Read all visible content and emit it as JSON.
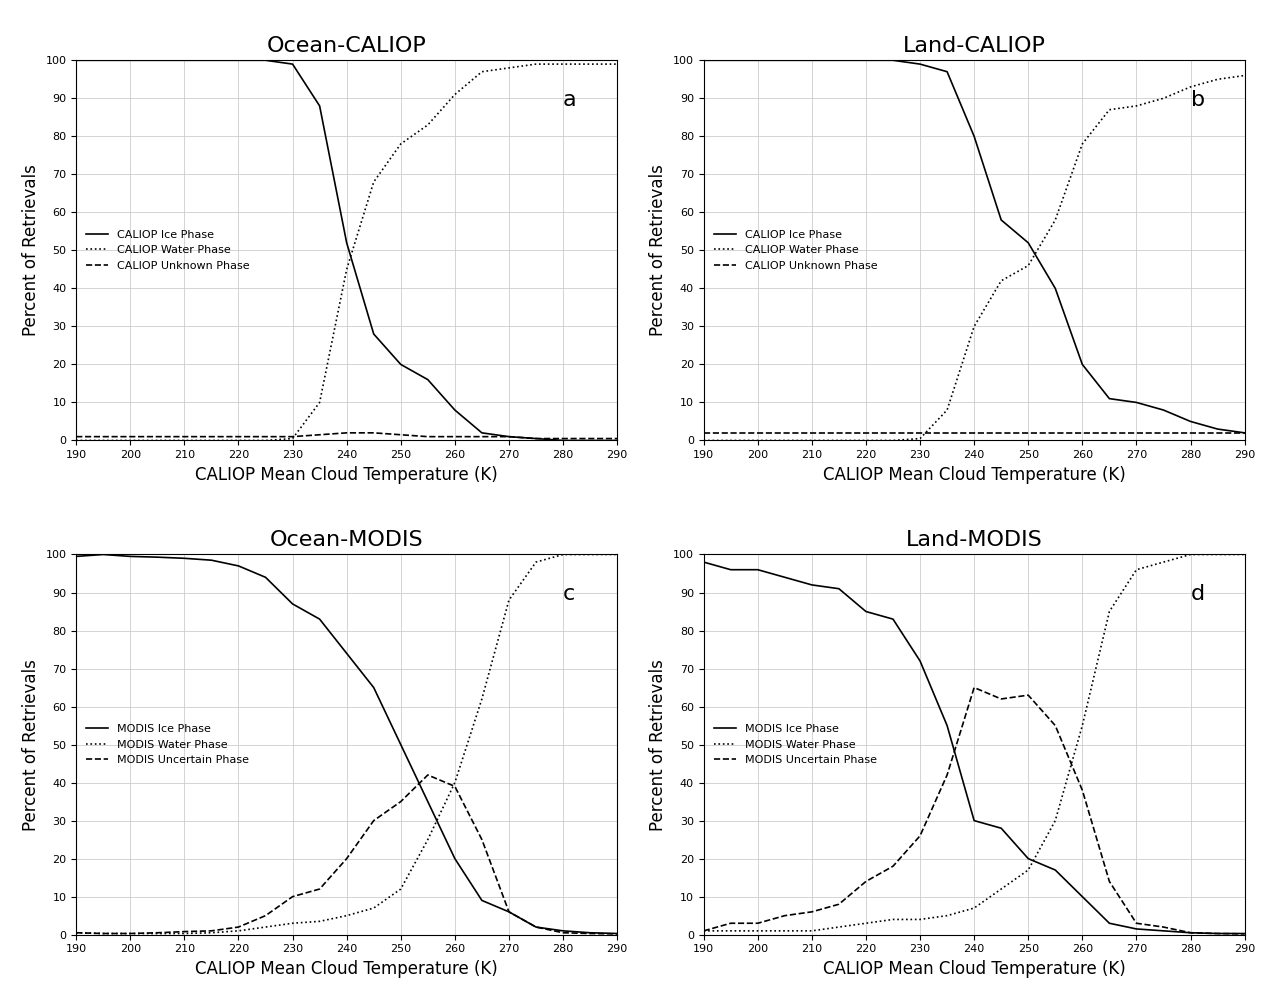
{
  "chart_data": [
    {
      "type": "line",
      "title": "Ocean-CALIOP",
      "annotation": "a",
      "x_label": "CALIOP Mean Cloud Temperature (K)",
      "y_label": "Percent of Retrievals",
      "x": [
        190,
        195,
        200,
        205,
        210,
        215,
        220,
        225,
        230,
        235,
        240,
        245,
        250,
        255,
        260,
        265,
        270,
        275,
        280,
        285,
        290
      ],
      "xlim": [
        190,
        290
      ],
      "ylim": [
        0,
        100
      ],
      "xticks": [
        190,
        200,
        210,
        220,
        230,
        240,
        250,
        260,
        270,
        280,
        290
      ],
      "yticks": [
        0,
        10,
        20,
        30,
        40,
        50,
        60,
        70,
        80,
        90,
        100
      ],
      "grid": true,
      "legend": "center left",
      "series": [
        {
          "name": "CALIOP Ice Phase",
          "color": "#000000",
          "line_style": "solid",
          "values": [
            100,
            100,
            100,
            100,
            100,
            100,
            100,
            100,
            99,
            88,
            52,
            28,
            20,
            16,
            8,
            2,
            1,
            0.5,
            0,
            0,
            0
          ]
        },
        {
          "name": "CALIOP Water Phase",
          "color": "#000000",
          "line_style": "dotted",
          "values": [
            0,
            0,
            0,
            0,
            0,
            0,
            0,
            0,
            0.5,
            10,
            45,
            68,
            78,
            83,
            91,
            97,
            98,
            99,
            99,
            99,
            99
          ]
        },
        {
          "name": "CALIOP Unknown Phase",
          "color": "#000000",
          "line_style": "dashed",
          "values": [
            1,
            1,
            1,
            1,
            1,
            1,
            1,
            1,
            1,
            1.5,
            2,
            2,
            1.5,
            1,
            1,
            1,
            1,
            0.5,
            0.5,
            0.5,
            0.5
          ]
        }
      ]
    },
    {
      "type": "line",
      "title": "Land-CALIOP",
      "annotation": "b",
      "x_label": "CALIOP Mean Cloud Temperature (K)",
      "y_label": "Percent of Retrievals",
      "x": [
        190,
        195,
        200,
        205,
        210,
        215,
        220,
        225,
        230,
        235,
        240,
        245,
        250,
        255,
        260,
        265,
        270,
        275,
        280,
        285,
        290
      ],
      "xlim": [
        190,
        290
      ],
      "ylim": [
        0,
        100
      ],
      "xticks": [
        190,
        200,
        210,
        220,
        230,
        240,
        250,
        260,
        270,
        280,
        290
      ],
      "yticks": [
        0,
        10,
        20,
        30,
        40,
        50,
        60,
        70,
        80,
        90,
        100
      ],
      "grid": true,
      "legend": "center left",
      "series": [
        {
          "name": "CALIOP Ice Phase",
          "color": "#000000",
          "line_style": "solid",
          "values": [
            100,
            100,
            100,
            100,
            100,
            100,
            100,
            100,
            99,
            97,
            80,
            58,
            52,
            40,
            20,
            11,
            10,
            8,
            5,
            3,
            2
          ]
        },
        {
          "name": "CALIOP Water Phase",
          "color": "#000000",
          "line_style": "dotted",
          "values": [
            0,
            0,
            0,
            0,
            0,
            0,
            0,
            0,
            0.5,
            8,
            30,
            42,
            46,
            58,
            78,
            87,
            88,
            90,
            93,
            95,
            96
          ]
        },
        {
          "name": "CALIOP Unknown Phase",
          "color": "#000000",
          "line_style": "dashed",
          "values": [
            2,
            2,
            2,
            2,
            2,
            2,
            2,
            2,
            2,
            2,
            2,
            2,
            2,
            2,
            2,
            2,
            2,
            2,
            2,
            2,
            2
          ]
        }
      ]
    },
    {
      "type": "line",
      "title": "Ocean-MODIS",
      "annotation": "c",
      "x_label": "CALIOP Mean Cloud Temperature (K)",
      "y_label": "Percent of Retrievals",
      "x": [
        190,
        195,
        200,
        205,
        210,
        215,
        220,
        225,
        230,
        235,
        240,
        245,
        250,
        255,
        260,
        265,
        270,
        275,
        280,
        285,
        290
      ],
      "xlim": [
        190,
        290
      ],
      "ylim": [
        0,
        100
      ],
      "xticks": [
        190,
        200,
        210,
        220,
        230,
        240,
        250,
        260,
        270,
        280,
        290
      ],
      "yticks": [
        0,
        10,
        20,
        30,
        40,
        50,
        60,
        70,
        80,
        90,
        100
      ],
      "grid": true,
      "legend": "center left",
      "series": [
        {
          "name": "MODIS Ice Phase",
          "color": "#000000",
          "line_style": "solid",
          "values": [
            99.5,
            100,
            99.5,
            99.3,
            99,
            98.5,
            97,
            94,
            87,
            83,
            74,
            65,
            50,
            35,
            20,
            9,
            6,
            2,
            1,
            0.5,
            0.3
          ]
        },
        {
          "name": "MODIS Water Phase",
          "color": "#000000",
          "line_style": "dotted",
          "values": [
            0.5,
            0.3,
            0.3,
            0.3,
            0.3,
            0.5,
            1,
            2,
            3,
            3.5,
            5,
            7,
            12,
            25,
            40,
            62,
            88,
            98,
            100,
            100,
            100
          ]
        },
        {
          "name": "MODIS Uncertain Phase",
          "color": "#000000",
          "line_style": "dashed",
          "values": [
            0.5,
            0.3,
            0.3,
            0.5,
            0.8,
            1,
            2,
            5,
            10,
            12,
            20,
            30,
            35,
            42,
            39,
            25,
            6,
            2,
            0.5,
            0.3,
            0.2
          ]
        }
      ]
    },
    {
      "type": "line",
      "title": "Land-MODIS",
      "annotation": "d",
      "x_label": "CALIOP Mean Cloud Temperature (K)",
      "y_label": "Percent of Retrievals",
      "x": [
        190,
        195,
        200,
        205,
        210,
        215,
        220,
        225,
        230,
        235,
        240,
        245,
        250,
        255,
        260,
        265,
        270,
        275,
        280,
        285,
        290
      ],
      "xlim": [
        190,
        290
      ],
      "ylim": [
        0,
        100
      ],
      "xticks": [
        190,
        200,
        210,
        220,
        230,
        240,
        250,
        260,
        270,
        280,
        290
      ],
      "yticks": [
        0,
        10,
        20,
        30,
        40,
        50,
        60,
        70,
        80,
        90,
        100
      ],
      "grid": true,
      "legend": "center left",
      "series": [
        {
          "name": "MODIS Ice Phase",
          "color": "#000000",
          "line_style": "solid",
          "values": [
            98,
            96,
            96,
            94,
            92,
            91,
            85,
            83,
            72,
            55,
            30,
            28,
            20,
            17,
            10,
            3,
            1.5,
            1,
            0.5,
            0.3,
            0.3
          ]
        },
        {
          "name": "MODIS Water Phase",
          "color": "#000000",
          "line_style": "dotted",
          "values": [
            1,
            1,
            1,
            1,
            1,
            2,
            3,
            4,
            4,
            5,
            7,
            12,
            17,
            30,
            55,
            85,
            96,
            98,
            100,
            100,
            100
          ]
        },
        {
          "name": "MODIS Uncertain Phase",
          "color": "#000000",
          "line_style": "dashed",
          "values": [
            1,
            3,
            3,
            5,
            6,
            8,
            14,
            18,
            26,
            42,
            65,
            62,
            63,
            55,
            38,
            14,
            3,
            2,
            0.5,
            0.3,
            0.2
          ]
        }
      ]
    }
  ]
}
